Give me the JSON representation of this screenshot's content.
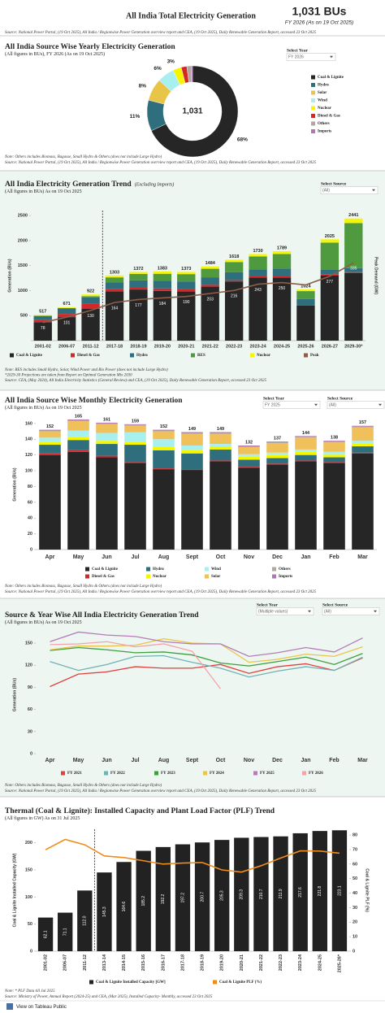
{
  "header": {
    "title": "All India Total Electricity Generation",
    "total": "1,031 BUs",
    "subtitle": "FY 2026 (As on 19 Oct 2025)",
    "source": "Source: National Power Portal, (19 Oct 2025), All India / Regionwise Power Generation overview report  and CEA, (19 Oct 2025), Daily Renewable Generation Report, accessed 23 Oct 2025"
  },
  "chart_data": [
    {
      "type": "pie",
      "title": "All India Source Wise Yearly Electricity Generation",
      "subtitle": "(All figures in BUs), FY 2026 (As on 19 Oct 2025)",
      "center_label": "1,031",
      "filters": [
        {
          "label": "Select Year",
          "value": "FY 2026"
        }
      ],
      "categories": [
        "Coal & Lignite",
        "Hydro",
        "Solar",
        "Wind",
        "Nuclear",
        "Diesel & Gas",
        "Others",
        "Imports"
      ],
      "values": [
        68,
        11,
        8,
        6,
        3,
        2,
        1.5,
        0.5
      ],
      "value_labels": [
        "68%",
        "11%",
        "8%",
        "6%",
        "3%",
        null,
        null,
        null
      ],
      "colors": [
        "#262626",
        "#2f6e7c",
        "#e8c547",
        "#a8f0f0",
        "#f5f500",
        "#d62728",
        "#b0a8a0",
        "#b274b4"
      ],
      "notes": [
        "Note: Others includes Biomass, Bagasse, Small Hydro & Others (does not include Large Hydro)",
        "Source: National Power Portal, (19 Oct 2025), All India / Regionwise Power Generation overview report  and CEA, (19 Oct 2025), Daily Renewable Generation Report, accessed 23 Oct 2025"
      ]
    },
    {
      "type": "bar",
      "title": "All India Electricity Generation Trend",
      "title_note": "(Excluding Imports)",
      "subtitle": "(All figures in BUs) As on 19 Oct 2025",
      "filters": [
        {
          "label": "Select Source",
          "value": "(All)"
        }
      ],
      "ylabel": "Generation (BUs)",
      "y2label": "Peak Demand (GW)",
      "categories": [
        "2001-02",
        "2006-07",
        "2011-12",
        "2017-18",
        "2018-19",
        "2019-20",
        "2020-21",
        "2021-22",
        "2022-23",
        "2023-24",
        "2024-25",
        "2025-26",
        "2026-27",
        "2029-30*"
      ],
      "series": [
        {
          "name": "Coal & Lignite",
          "color": "#262626",
          "values": [
            370,
            470,
            640,
            986,
            1022,
            995,
            982,
            1079,
            1183,
            1261,
            1262,
            700,
            1300,
            1350
          ]
        },
        {
          "name": "Diesel & Gas",
          "color": "#d62728",
          "values": [
            50,
            64,
            93,
            51,
            50,
            49,
            51,
            36,
            25,
            31,
            30,
            15,
            20,
            20
          ]
        },
        {
          "name": "Hydro",
          "color": "#2f6e7c",
          "values": [
            74,
            114,
            131,
            126,
            135,
            156,
            150,
            151,
            162,
            134,
            149,
            115,
            100,
            80
          ]
        },
        {
          "name": "RES",
          "color": "#4f9a3f",
          "values": [
            3,
            4,
            25,
            102,
            127,
            137,
            147,
            171,
            202,
            256,
            291,
            160,
            540,
            900
          ]
        },
        {
          "name": "Nuclear",
          "color": "#f5f500",
          "values": [
            20,
            19,
            33,
            38,
            38,
            46,
            43,
            47,
            46,
            48,
            57,
            34,
            65,
            91
          ]
        },
        {
          "name": "Peak",
          "color": "#8b5e4a",
          "axis": "y2",
          "values": [
            78,
            101,
            130,
            164,
            177,
            184,
            190,
            203,
            216,
            243,
            250,
            240,
            277,
            335
          ],
          "value_labels": [
            "78",
            "101",
            "130",
            "164",
            "177",
            "184",
            "190",
            "203",
            "216",
            "243",
            "250",
            null,
            "277",
            "335"
          ]
        }
      ],
      "totals": [
        517,
        671,
        922,
        1303,
        1372,
        1383,
        1373,
        1484,
        1618,
        1730,
        1789,
        1024,
        2025,
        2441
      ],
      "ylim": [
        0,
        2600
      ],
      "yticks": [
        500,
        1000,
        1500,
        2000,
        2500
      ],
      "y2lim": [
        0,
        560
      ],
      "notes": [
        "Note: RES includes Small Hydro, Solar, Wind Power and Bio Power (does not include Large Hydro)",
        "*2029-30 Projections are taken from Report on Optimal Generation Mix 2030",
        "Source: CEA, (May 2024), All India Electricity Statistics (General Review) and CEA, (19 Oct 2025), Daily Renewable Generation Report, accessed 23 Oct 2025"
      ]
    },
    {
      "type": "bar",
      "title": "All India Source Wise Monthly Electricity Generation",
      "subtitle": "(All figures in BUs) As on 19 Oct 2025",
      "filters": [
        {
          "label": "Select Year",
          "value": "FY 2025"
        },
        {
          "label": "Select Source",
          "value": "(All)"
        }
      ],
      "ylabel": "Generation (BUs)",
      "categories": [
        "Apr",
        "May",
        "Jun",
        "Jul",
        "Aug",
        "Sept",
        "Oct",
        "Nov",
        "Dec",
        "Jan",
        "Feb",
        "Mar"
      ],
      "series": [
        {
          "name": "Coal & Lignite",
          "color": "#262626",
          "values": [
            120,
            124,
            117,
            110,
            102,
            101,
            112,
            104,
            108,
            112,
            110,
            122
          ]
        },
        {
          "name": "Diesel & Gas",
          "color": "#d62728",
          "values": [
            2,
            2,
            2,
            1,
            1,
            1,
            1,
            1,
            1,
            1,
            1,
            1
          ]
        },
        {
          "name": "Hydro",
          "color": "#2f6e7c",
          "values": [
            11,
            13,
            15,
            22,
            23,
            20,
            14,
            9,
            7,
            7,
            6,
            8
          ]
        },
        {
          "name": "Nuclear",
          "color": "#f5f500",
          "values": [
            4,
            4,
            4,
            4,
            4,
            4,
            4,
            4,
            4,
            4,
            4,
            4
          ]
        },
        {
          "name": "Wind",
          "color": "#a8f0f0",
          "values": [
            5,
            8,
            10,
            12,
            10,
            6,
            3,
            3,
            3,
            3,
            3,
            3
          ]
        },
        {
          "name": "Solar",
          "color": "#f0c05a",
          "values": [
            8,
            12,
            11,
            8,
            10,
            15,
            13,
            9,
            12,
            15,
            12,
            17
          ]
        },
        {
          "name": "Others",
          "color": "#b0a8a0",
          "values": [
            1,
            1,
            1,
            1,
            1,
            1,
            1,
            1,
            1,
            1,
            1,
            1
          ]
        },
        {
          "name": "Imports",
          "color": "#b274b4",
          "values": [
            1,
            1,
            1,
            1,
            1,
            1,
            1,
            1,
            1,
            1,
            1,
            1
          ]
        }
      ],
      "totals": [
        152,
        165,
        161,
        159,
        152,
        149,
        149,
        132,
        137,
        144,
        138,
        157
      ],
      "ylim": [
        0,
        165
      ],
      "yticks": [
        0,
        20,
        40,
        60,
        80,
        100,
        120,
        140,
        160
      ],
      "notes": [
        "Note: Others includes Biomass, Bagasse, Small Hydro & Others (does not include Large Hydro)",
        "Source: National Power Portal, (19 Oct 2025), All India / Regionwise Power Generation overview report  and CEA, (19 Oct 2025), Daily Renewable Generation Report, accessed 23 Oct 2025"
      ]
    },
    {
      "type": "line",
      "title": "Source & Year Wise All India Electricity Generation Trend",
      "subtitle": "(All figures in BUs) As on 19 Oct 2025",
      "filters": [
        {
          "label": "Select Year",
          "value": "(Multiple values)"
        },
        {
          "label": "Select Source",
          "value": "(All)"
        }
      ],
      "ylabel": "Generation (BUs)",
      "categories": [
        "Apr",
        "May",
        "Jun",
        "Jul",
        "Aug",
        "Sept",
        "Oct",
        "Nov",
        "Dec",
        "Jan",
        "Feb",
        "Mar"
      ],
      "series": [
        {
          "name": "FY 2021",
          "color": "#e0413f",
          "values": [
            91,
            108,
            111,
            118,
            116,
            116,
            121,
            109,
            118,
            122,
            113,
            130
          ]
        },
        {
          "name": "FY 2022",
          "color": "#6fb3b3",
          "values": [
            125,
            113,
            121,
            132,
            133,
            124,
            116,
            104,
            112,
            118,
            113,
            131
          ]
        },
        {
          "name": "FY 2023",
          "color": "#3d9f3d",
          "values": [
            140,
            144,
            141,
            137,
            138,
            134,
            123,
            119,
            125,
            131,
            121,
            136
          ]
        },
        {
          "name": "FY 2024",
          "color": "#e8c547",
          "values": [
            141,
            146,
            146,
            147,
            156,
            150,
            149,
            124,
            128,
            135,
            132,
            145
          ]
        },
        {
          "name": "FY 2025",
          "color": "#b47cb8",
          "values": [
            152,
            165,
            161,
            159,
            152,
            149,
            149,
            132,
            137,
            144,
            138,
            157
          ]
        },
        {
          "name": "FY 2026",
          "color": "#f4a3a8",
          "values": [
            148,
            149,
            152,
            145,
            149,
            139,
            88,
            null,
            null,
            null,
            null,
            null
          ]
        }
      ],
      "ylim": [
        0,
        160
      ],
      "yticks": [
        0,
        30,
        60,
        90,
        120,
        150
      ],
      "notes": [
        "Note: Others includes Biomass, Bagasse, Small Hydro & Others (does not include Large Hydro)",
        "Source: National Power Portal, (19 Oct 2025), All India / Regionwise Power Generation overview report  and CEA, (19 Oct 2025), Daily Renewable Generation Report, accessed 23 Oct 2025"
      ]
    },
    {
      "type": "bar",
      "title": "Thermal (Coal & Lignite): Installed Capacity and Plant Load Factor (PLF) Trend",
      "subtitle": "(All figures in GW) As on 31 Jul 2025",
      "ylabel": "Coal & Lignite Installed Capacity (GW)",
      "y2label": "Coal & Lignite PLF (%)",
      "categories": [
        "2001-02",
        "2006-07",
        "2011-12",
        "2013-14",
        "2014-15",
        "2015-16",
        "2016-17",
        "2017-18",
        "2018-19",
        "2019-20",
        "2020-21",
        "2021-22",
        "2022-23",
        "2023-24",
        "2024-25",
        "2025-26*"
      ],
      "series": [
        {
          "name": "Coal & Lignite Installed Capacity [GW]",
          "color": "#222222",
          "values": [
            62.1,
            71.1,
            112,
            145.3,
            164.6,
            185.2,
            192.2,
            197.2,
            200.7,
            205.3,
            209.3,
            210.7,
            211.9,
            217.6,
            221.8,
            223.1
          ],
          "value_labels": [
            "62.1",
            "71.1",
            "112.0",
            "145.3",
            "164.6",
            "185.2",
            "192.2",
            "197.2",
            "200.7",
            "205.3",
            "209.3",
            "210.7",
            "211.9",
            "217.6",
            "221.8",
            "223.1"
          ]
        },
        {
          "name": "Coal & Lignite PLF (%)",
          "color": "#f08c1e",
          "axis": "y2",
          "values": [
            69.9,
            77,
            73.3,
            65.6,
            64.5,
            62.3,
            60,
            60.7,
            61.1,
            56,
            54.5,
            58.9,
            64.2,
            69.1,
            69,
            67.5
          ]
        }
      ],
      "ylim": [
        0,
        225
      ],
      "yticks": [
        0,
        50,
        100,
        150,
        200
      ],
      "y2lim": [
        0,
        84
      ],
      "y2ticks": [
        0,
        10,
        20,
        30,
        40,
        50,
        60,
        70,
        80
      ],
      "notes": [
        "Note: * PLF Data till Jul 2025",
        "Source: Ministry of Power, Annual Report (2024-25) and CEA, (Mar 2025), Installed Capacity- Monthly, accessed 23 Oct 2025"
      ]
    }
  ],
  "footer": {
    "link": "View on Tableau Public"
  }
}
